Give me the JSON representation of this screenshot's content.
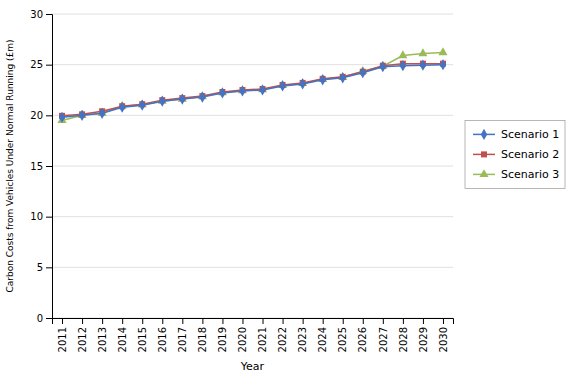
{
  "chart_data": {
    "type": "line",
    "xlabel": "Year",
    "ylabel": "Carbon Costs from Vehicles Under Normal Running (£m)",
    "x": [
      2011,
      2012,
      2013,
      2014,
      2015,
      2016,
      2017,
      2018,
      2019,
      2020,
      2021,
      2022,
      2023,
      2024,
      2025,
      2026,
      2027,
      2028,
      2029,
      2030
    ],
    "series": [
      {
        "name": "Scenario 1",
        "color": "#4472C4",
        "marker": "diamond",
        "values": [
          19.8,
          20.0,
          20.2,
          20.8,
          21.0,
          21.4,
          21.6,
          21.8,
          22.2,
          22.4,
          22.5,
          22.9,
          23.1,
          23.5,
          23.7,
          24.2,
          24.8,
          24.9,
          24.95,
          25.0
        ]
      },
      {
        "name": "Scenario 2",
        "color": "#C0504D",
        "marker": "square",
        "values": [
          19.95,
          20.1,
          20.4,
          20.9,
          21.1,
          21.5,
          21.7,
          21.9,
          22.3,
          22.5,
          22.6,
          23.0,
          23.2,
          23.6,
          23.8,
          24.3,
          24.9,
          25.1,
          25.1,
          25.1
        ]
      },
      {
        "name": "Scenario 3",
        "color": "#9BBB59",
        "marker": "triangle",
        "values": [
          19.5,
          20.0,
          20.2,
          20.9,
          21.05,
          21.4,
          21.6,
          21.85,
          22.25,
          22.45,
          22.55,
          22.95,
          23.15,
          23.55,
          23.75,
          24.35,
          24.85,
          25.9,
          26.1,
          26.2
        ]
      }
    ],
    "xlim": [
      2010.5,
      2030.5
    ],
    "xticks": [
      2011,
      2012,
      2013,
      2014,
      2015,
      2016,
      2017,
      2018,
      2019,
      2020,
      2021,
      2022,
      2023,
      2024,
      2025,
      2026,
      2027,
      2028,
      2029,
      2030
    ],
    "ylim": [
      0,
      30
    ],
    "yticks": [
      0,
      5,
      10,
      15,
      20,
      25,
      30
    ],
    "grid": true,
    "legend": "right"
  }
}
